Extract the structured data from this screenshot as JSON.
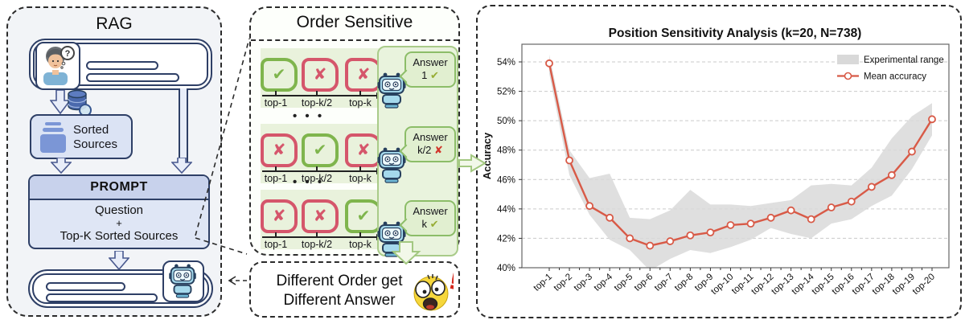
{
  "left_panel": {
    "title": "RAG",
    "sorted_sources_line1": "Sorted",
    "sorted_sources_line2": "Sources",
    "prompt_header": "PROMPT",
    "prompt_line1": "Question",
    "prompt_line2": "+",
    "prompt_line3": "Top-K Sorted Sources"
  },
  "middle_panel": {
    "title": "Order Sensitive",
    "dots": "• • •",
    "mark_glyphs": {
      "check": "✔",
      "cross": "✘"
    },
    "rows": [
      {
        "marks": [
          "check",
          "cross",
          "cross"
        ],
        "tick_labels": [
          "top-1",
          "top-k/2",
          "top-k"
        ],
        "answer_word": "Answer",
        "answer_id": "1",
        "answer_mark": "check"
      },
      {
        "marks": [
          "cross",
          "check",
          "cross"
        ],
        "tick_labels": [
          "top-1",
          "top-k/2",
          "top-k"
        ],
        "answer_word": "Answer",
        "answer_id": "k/2",
        "answer_mark": "cross"
      },
      {
        "marks": [
          "cross",
          "cross",
          "check"
        ],
        "tick_labels": [
          "top-1",
          "top-k/2",
          "top-k"
        ],
        "answer_word": "Answer",
        "answer_id": "k",
        "answer_mark": "check"
      }
    ],
    "caption_line1": "Different Order get",
    "caption_line2": "Different Answer"
  },
  "chart_data": {
    "type": "line",
    "title": "Position Sensitivity Analysis (k=20, N=738)",
    "xlabel": "",
    "ylabel": "Accuracy",
    "categories": [
      "top-1",
      "top-2",
      "top-3",
      "top-4",
      "top-5",
      "top-6",
      "top-7",
      "top-8",
      "top-9",
      "top-10",
      "top-11",
      "top-12",
      "top-13",
      "top-14",
      "top-15",
      "top-16",
      "top-17",
      "top-18",
      "top-19",
      "top-20"
    ],
    "series": [
      {
        "name": "Mean accuracy",
        "values": [
          53.9,
          47.3,
          44.2,
          43.4,
          42.0,
          41.5,
          41.8,
          42.2,
          42.4,
          42.9,
          43.0,
          43.4,
          43.9,
          43.3,
          44.1,
          44.5,
          45.5,
          46.3,
          47.9,
          50.1
        ]
      }
    ],
    "band": {
      "name": "Experimental range",
      "upper": [
        54.5,
        48.0,
        46.1,
        46.4,
        43.4,
        43.3,
        43.9,
        45.3,
        44.3,
        44.3,
        44.2,
        44.4,
        44.6,
        45.6,
        45.7,
        45.6,
        46.8,
        48.8,
        50.3,
        51.2
      ],
      "lower": [
        53.2,
        46.3,
        43.6,
        41.9,
        41.2,
        39.8,
        40.6,
        41.2,
        41.0,
        41.4,
        41.9,
        42.7,
        42.3,
        42.0,
        43.0,
        43.3,
        44.2,
        44.9,
        46.7,
        49.0
      ]
    },
    "y_ticks": [
      "40%",
      "42%",
      "44%",
      "46%",
      "48%",
      "50%",
      "52%",
      "54%"
    ],
    "ylim": [
      40,
      55
    ],
    "grid": "horizontal-dashed",
    "legend_position": "top-right",
    "colors": {
      "line": "#d85a47",
      "band": "#d9d9d9"
    }
  }
}
